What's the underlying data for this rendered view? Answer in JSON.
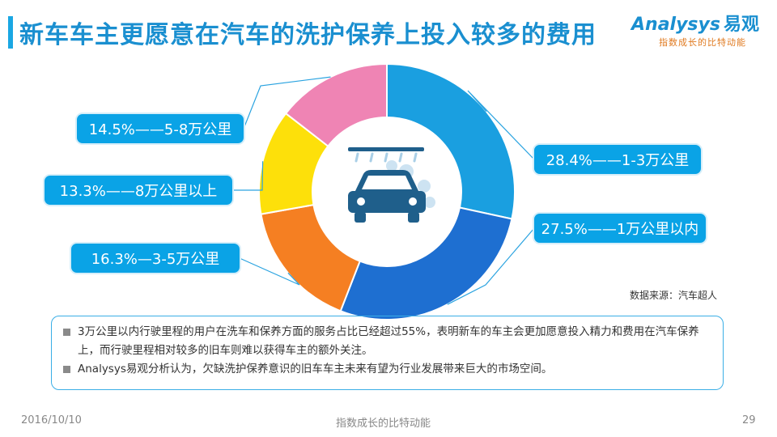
{
  "title": "新车车主更愿意在汽车的洗护保养上投入较多的费用",
  "logo": {
    "brand": "Analysys",
    "brand_cn": "易观",
    "tagline": "指数成长的比特动能"
  },
  "chart_data": {
    "type": "pie",
    "donut": true,
    "slices": [
      {
        "label": "1-3万公里",
        "value": 28.4,
        "color": "#1a9fe0",
        "text": "28.4%——1-3万公里"
      },
      {
        "label": "1万公里以内",
        "value": 27.5,
        "color": "#1e6fd1",
        "text": "27.5%——1万公里以内"
      },
      {
        "label": "3-5万公里",
        "value": 16.3,
        "color": "#f57f22",
        "text": "16.3%—3-5万公里"
      },
      {
        "label": "8万公里以上",
        "value": 13.3,
        "color": "#fde00a",
        "text": "13.3%——8万公里以上"
      },
      {
        "label": "5-8万公里",
        "value": 14.5,
        "color": "#ef84b4",
        "text": "14.5%——5-8万公里"
      }
    ],
    "center_icon": "car-wash-icon",
    "center_icon_color": "#1f5f8b"
  },
  "source": "数据来源：汽车超人",
  "notes": [
    "3万公里以内行驶里程的用户在洗车和保养方面的服务占比已经超过55%，表明新车的车主会更加愿意投入精力和费用在汽车保养上，而行驶里程相对较多的旧车则难以获得车主的额外关注。",
    "Analysys易观分析认为，欠缺洗护保养意识的旧车车主未来有望为行业发展带来巨大的市场空间。"
  ],
  "footer": {
    "date": "2016/10/10",
    "tagline": "指数成长的比特动能",
    "page": "29"
  }
}
